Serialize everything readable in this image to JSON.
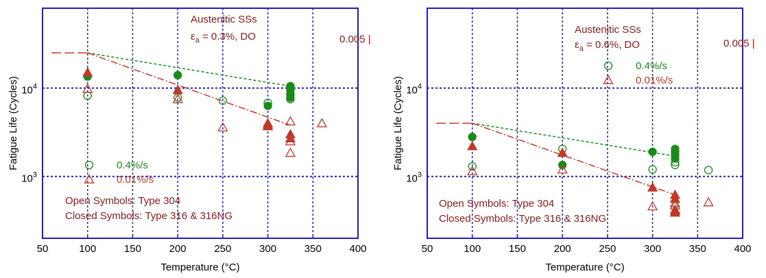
{
  "chart_data": [
    {
      "type": "scatter",
      "xlabel": "Temperature (°C)",
      "ylabel": "Fatigue Life (Cycles)",
      "xlim": [
        50,
        400
      ],
      "ylim": [
        200,
        80000
      ],
      "y_scale": "log",
      "x_ticks": [
        "50",
        "100",
        "150",
        "200",
        "250",
        "300",
        "350",
        "400"
      ],
      "y_ticks": [
        {
          "base": "10",
          "exp": "3",
          "value": 1000
        },
        {
          "base": "10",
          "exp": "4",
          "value": 10000
        }
      ],
      "annotations": {
        "title_line1": "Austenitic SSs",
        "title_line2_sym": "ε",
        "title_line2_sub": "a",
        "title_line2_rest": " = 0.3%, DO",
        "side_text": "0.005 |",
        "note_line1": "Open Symbols: Type 304",
        "note_line2": "Closed Symbols: Type 316 & 316NG"
      },
      "legend": {
        "placement": "bottom-left",
        "items": [
          {
            "label": "0.4%/s",
            "marker": "circle",
            "color": "#1a8a1a"
          },
          {
            "label": "0.01%/s",
            "marker": "triangle",
            "color": "#c0392b"
          }
        ]
      },
      "series": [
        {
          "marker": "circle",
          "color": "#1a8a1a",
          "filled": false,
          "points": [
            [
              100,
              8200
            ],
            [
              200,
              7800
            ],
            [
              250,
              7200
            ],
            [
              300,
              6800
            ],
            [
              325,
              10500
            ],
            [
              325,
              8500
            ],
            [
              325,
              7500
            ]
          ]
        },
        {
          "marker": "circle",
          "color": "#1a8a1a",
          "filled": true,
          "points": [
            [
              100,
              13500
            ],
            [
              200,
              14000
            ],
            [
              300,
              6300
            ],
            [
              325,
              10500
            ],
            [
              325,
              9500
            ],
            [
              325,
              8500
            ],
            [
              325,
              7800
            ]
          ]
        },
        {
          "marker": "triangle",
          "color": "#c0392b",
          "filled": false,
          "points": [
            [
              100,
              9800
            ],
            [
              200,
              7500
            ],
            [
              250,
              3600
            ],
            [
              300,
              3800
            ],
            [
              325,
              4200
            ],
            [
              325,
              2500
            ],
            [
              325,
              1850
            ],
            [
              360,
              4000
            ]
          ]
        },
        {
          "marker": "triangle",
          "color": "#c0392b",
          "filled": true,
          "points": [
            [
              100,
              15000
            ],
            [
              200,
              9500
            ],
            [
              300,
              4000
            ],
            [
              300,
              3700
            ],
            [
              325,
              3000
            ],
            [
              325,
              2700
            ]
          ]
        }
      ],
      "lines": [
        {
          "style": "long-dash",
          "color": "#c0392b",
          "points": [
            [
              60,
              25000
            ],
            [
              100,
              25000
            ]
          ]
        },
        {
          "style": "dash",
          "color": "#1a8a1a",
          "points": [
            [
              100,
              25000
            ],
            [
              325,
              10500
            ]
          ]
        },
        {
          "style": "dash-dot",
          "color": "#c0392b",
          "points": [
            [
              100,
              25000
            ],
            [
              325,
              3800
            ]
          ]
        }
      ]
    },
    {
      "type": "scatter",
      "xlabel": "Temperature (°C)",
      "ylabel": "Fatigue Life (Cycles)",
      "xlim": [
        50,
        400
      ],
      "ylim": [
        200,
        80000
      ],
      "y_scale": "log",
      "x_ticks": [
        "50",
        "100",
        "150",
        "200",
        "250",
        "300",
        "350",
        "400"
      ],
      "y_ticks": [
        {
          "base": "10",
          "exp": "3",
          "value": 1000
        },
        {
          "base": "10",
          "exp": "4",
          "value": 10000
        }
      ],
      "annotations": {
        "title_line1": "Austenitic SSs",
        "title_line2_sym": "ε",
        "title_line2_sub": "a",
        "title_line2_rest": " = 0.6%, DO",
        "side_text": "0.005 |",
        "note_line1": "Open Symbols: Type 304",
        "note_line2": "Closed Symbols: Type 316 & 316NG"
      },
      "legend": {
        "placement": "top-right",
        "items": [
          {
            "label": "0.4%/s",
            "marker": "circle",
            "color": "#1a8a1a"
          },
          {
            "label": "0.01%/s",
            "marker": "triangle",
            "color": "#c0392b"
          }
        ]
      },
      "series": [
        {
          "marker": "circle",
          "color": "#1a8a1a",
          "filled": false,
          "points": [
            [
              100,
              1300
            ],
            [
              200,
              2050
            ],
            [
              300,
              1200
            ],
            [
              325,
              1350
            ],
            [
              325,
              1450
            ],
            [
              362,
              1180
            ]
          ]
        },
        {
          "marker": "circle",
          "color": "#1a8a1a",
          "filled": true,
          "points": [
            [
              100,
              2800
            ],
            [
              200,
              1350
            ],
            [
              300,
              1900
            ],
            [
              325,
              2050
            ],
            [
              325,
              1900
            ],
            [
              325,
              1750
            ],
            [
              325,
              1600
            ]
          ]
        },
        {
          "marker": "triangle",
          "color": "#c0392b",
          "filled": false,
          "points": [
            [
              100,
              1150
            ],
            [
              200,
              1200
            ],
            [
              300,
              460
            ],
            [
              325,
              470
            ],
            [
              325,
              420
            ],
            [
              325,
              500
            ],
            [
              362,
              510
            ]
          ]
        },
        {
          "marker": "triangle",
          "color": "#c0392b",
          "filled": true,
          "points": [
            [
              100,
              2200
            ],
            [
              200,
              1850
            ],
            [
              300,
              750
            ],
            [
              325,
              620
            ],
            [
              325,
              560
            ],
            [
              325,
              410
            ],
            [
              325,
              390
            ]
          ]
        }
      ],
      "lines": [
        {
          "style": "long-dash",
          "color": "#c0392b",
          "points": [
            [
              60,
              4000
            ],
            [
              100,
              4000
            ]
          ]
        },
        {
          "style": "dash",
          "color": "#1a8a1a",
          "points": [
            [
              100,
              4000
            ],
            [
              325,
              1700
            ]
          ]
        },
        {
          "style": "dash-dot",
          "color": "#c0392b",
          "points": [
            [
              100,
              4000
            ],
            [
              325,
              620
            ]
          ]
        }
      ]
    }
  ]
}
